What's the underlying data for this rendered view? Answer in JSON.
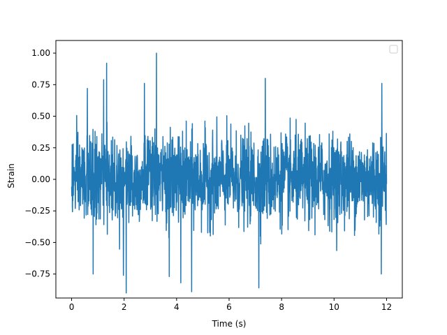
{
  "chart_data": {
    "type": "line",
    "xlabel": "Time (s)",
    "ylabel": "Strain",
    "xlim": [
      -0.6,
      12.6
    ],
    "ylim": [
      -0.94,
      1.1
    ],
    "x_ticks": [
      0,
      2,
      4,
      6,
      8,
      10,
      12
    ],
    "x_tick_labels": [
      "0",
      "2",
      "4",
      "6",
      "8",
      "10",
      "12"
    ],
    "y_ticks": [
      -0.75,
      -0.5,
      -0.25,
      0.0,
      0.25,
      0.5,
      0.75,
      1.0
    ],
    "y_tick_labels": [
      "−0.75",
      "−0.50",
      "−0.25",
      "0.00",
      "0.25",
      "0.50",
      "0.75",
      "1.00"
    ],
    "legend": {
      "placement": "top-right",
      "entries": []
    },
    "grid": false,
    "series": [
      {
        "color": "#1f77b4",
        "x_start": 0,
        "x_end": 12,
        "envelope_note": "dense noise signal; approx bulk range ±0.4 with spikes",
        "peaks": [
          {
            "x": 3.23,
            "y": 1.0
          },
          {
            "x": 1.33,
            "y": 0.92
          },
          {
            "x": 1.22,
            "y": 0.79
          },
          {
            "x": 7.38,
            "y": 0.8
          },
          {
            "x": 2.77,
            "y": 0.76
          },
          {
            "x": 0.6,
            "y": 0.72
          },
          {
            "x": 11.82,
            "y": 0.76
          },
          {
            "x": 2.08,
            "y": -0.9
          },
          {
            "x": 4.57,
            "y": -0.89
          },
          {
            "x": 1.97,
            "y": -0.76
          },
          {
            "x": 7.13,
            "y": -0.86
          },
          {
            "x": 4.16,
            "y": -0.82
          },
          {
            "x": 0.82,
            "y": -0.75
          },
          {
            "x": 3.72,
            "y": -0.77
          },
          {
            "x": 11.8,
            "y": -0.75
          }
        ]
      }
    ]
  }
}
